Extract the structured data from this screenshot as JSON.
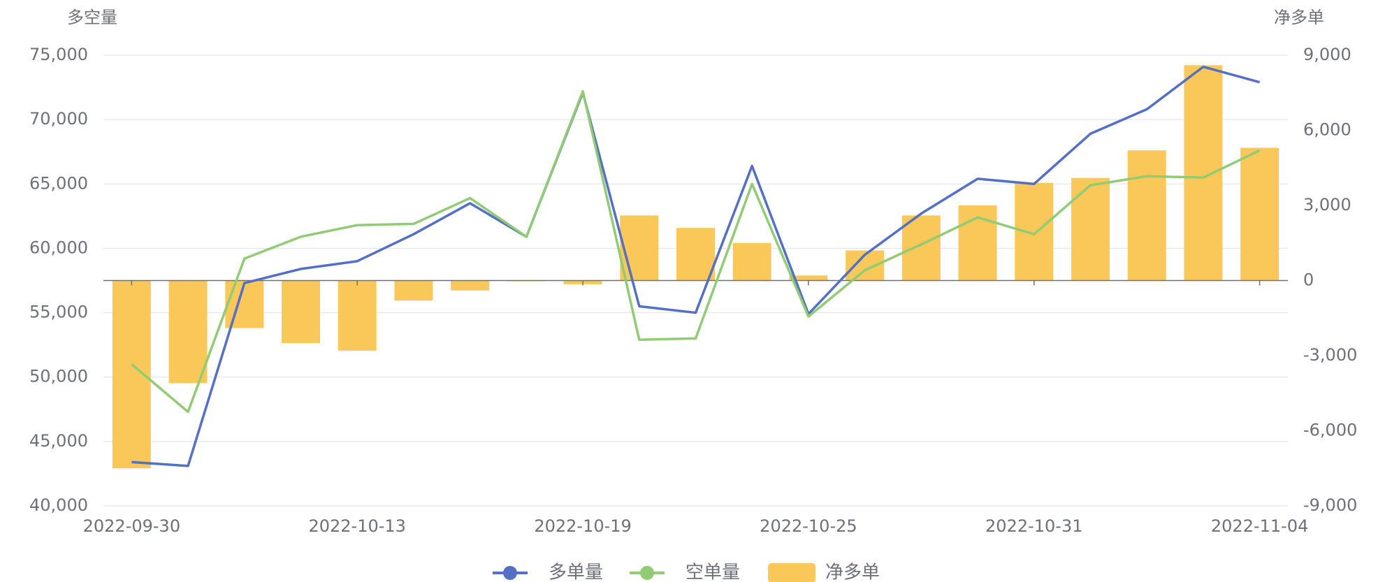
{
  "chart_data": {
    "type": "bar",
    "y_axis_label": "多空量",
    "y2_axis_label": "净多单",
    "categories": [
      "2022-09-30",
      null,
      null,
      null,
      "2022-10-13",
      null,
      null,
      null,
      "2022-10-19",
      null,
      null,
      null,
      "2022-10-25",
      null,
      null,
      null,
      "2022-10-31",
      null,
      null,
      null,
      "2022-11-04"
    ],
    "series": [
      {
        "name": "多单量",
        "type": "line",
        "color": "#5470c6",
        "axis": "y",
        "values": [
          43400,
          43100,
          57300,
          58400,
          59000,
          61100,
          63500,
          60900,
          72100,
          55500,
          55000,
          66400,
          54900,
          59500,
          62700,
          65400,
          65000,
          68900,
          70800,
          74100,
          72900
        ]
      },
      {
        "name": "空单量",
        "type": "line",
        "color": "#91cc75",
        "axis": "y",
        "values": [
          51000,
          47300,
          59200,
          60900,
          61800,
          61900,
          63900,
          60900,
          72200,
          52900,
          53000,
          65000,
          54700,
          58300,
          60300,
          62400,
          61100,
          64900,
          65600,
          65500,
          67600
        ]
      },
      {
        "name": "净多单",
        "type": "bar",
        "color": "#fac858",
        "axis": "y2",
        "values": [
          -7500,
          -4100,
          -1900,
          -2500,
          -2800,
          -800,
          -400,
          -30,
          -150,
          2600,
          2100,
          1500,
          200,
          1200,
          2600,
          3000,
          3900,
          4100,
          5200,
          8600,
          5300
        ]
      }
    ],
    "ylim": [
      40000,
      75000
    ],
    "yticks": [
      {
        "value": 40000,
        "label": "40,000"
      },
      {
        "value": 45000,
        "label": "45,000"
      },
      {
        "value": 50000,
        "label": "50,000"
      },
      {
        "value": 55000,
        "label": "55,000"
      },
      {
        "value": 60000,
        "label": "60,000"
      },
      {
        "value": 65000,
        "label": "65,000"
      },
      {
        "value": 70000,
        "label": "70,000"
      },
      {
        "value": 75000,
        "label": "75,000"
      }
    ],
    "y2lim": [
      -9000,
      9000
    ],
    "y2ticks": [
      {
        "value": -9000,
        "label": "-9,000"
      },
      {
        "value": -6000,
        "label": "-6,000"
      },
      {
        "value": -3000,
        "label": "-3,000"
      },
      0,
      {
        "value": 3000,
        "label": "3,000"
      },
      {
        "value": 6000,
        "label": "6,000"
      },
      {
        "value": 9000,
        "label": "9,000"
      }
    ],
    "grid": true,
    "legend": "bottom"
  }
}
